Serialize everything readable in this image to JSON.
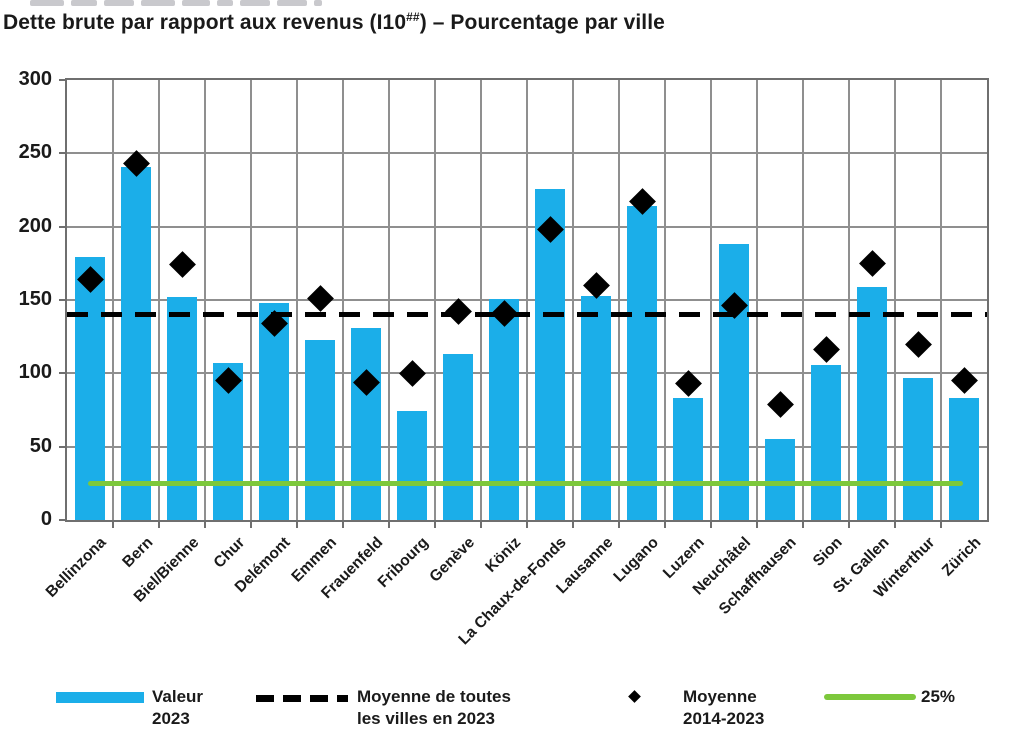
{
  "title": {
    "prefix": "Dette brute par rapport aux revenus (I10",
    "superscript": "##",
    "suffix": ") – Pourcentage par ville"
  },
  "colors": {
    "bar": "#1BAEE9",
    "diamond": "#000000",
    "mean_line": "#000000",
    "green_line": "#7DC83C",
    "grid": "#8F8F8F",
    "border": "#6F6F6F"
  },
  "legend": [
    {
      "swatch": "bar",
      "label": "Valeur\n2023"
    },
    {
      "swatch": "dashed",
      "label": "Moyenne de toutes\nles villes en 2023"
    },
    {
      "swatch": "diamond",
      "label": "Moyenne\n2014-2023"
    },
    {
      "swatch": "green",
      "label": "25%"
    }
  ],
  "chart_data": {
    "type": "bar",
    "title": "Dette brute par rapport aux revenus (I10##) – Pourcentage par ville",
    "xlabel": "",
    "ylabel": "",
    "ylim": [
      0,
      300
    ],
    "ytick_interval": 50,
    "grid": true,
    "legend_position": "bottom",
    "categories": [
      "Bellinzona",
      "Bern",
      "Biel/Bienne",
      "Chur",
      "Delémont",
      "Emmen",
      "Frauenfeld",
      "Fribourg",
      "Genève",
      "Köniz",
      "La Chaux-de-Fonds",
      "Lausanne",
      "Lugano",
      "Luzern",
      "Neuchâtel",
      "Schaffhausen",
      "Sion",
      "St. Gallen",
      "Winterthur",
      "Zürich"
    ],
    "series": [
      {
        "name": "Valeur 2023",
        "type": "bar",
        "values": [
          179,
          241,
          152,
          107,
          148,
          123,
          131,
          74,
          113,
          151,
          226,
          153,
          214,
          83,
          188,
          55,
          106,
          159,
          97,
          83
        ]
      },
      {
        "name": "Moyenne 2014-2023",
        "type": "scatter-diamond",
        "values": [
          164,
          243,
          174,
          95,
          134,
          151,
          94,
          100,
          142,
          141,
          198,
          160,
          217,
          93,
          146,
          79,
          116,
          175,
          120,
          95
        ]
      }
    ],
    "reference_lines": [
      {
        "name": "Moyenne de toutes les villes en 2023",
        "value": 140,
        "style": "dashed-black"
      },
      {
        "name": "25%",
        "value": 25,
        "style": "solid-green"
      }
    ]
  }
}
